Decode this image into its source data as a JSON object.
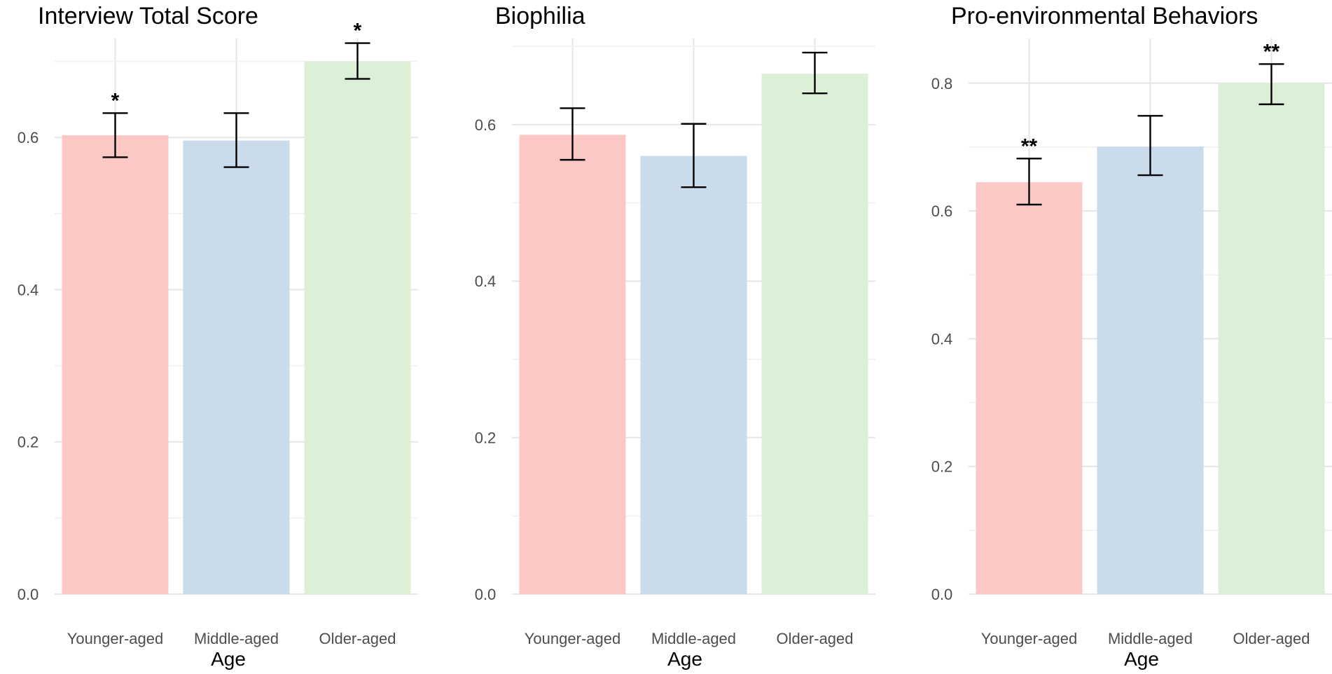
{
  "chart_data": [
    {
      "type": "bar",
      "title": "Interview Total Score",
      "xlabel": "Age",
      "ylabel": "",
      "categories": [
        "Younger-aged",
        "Middle-aged",
        "Older-aged"
      ],
      "values": [
        0.603,
        0.596,
        0.7
      ],
      "error_low": [
        0.574,
        0.561,
        0.677
      ],
      "error_high": [
        0.632,
        0.632,
        0.724
      ],
      "significance": [
        "*",
        "",
        "*"
      ],
      "ylim": [
        0,
        0.73
      ],
      "yticks": [
        0.0,
        0.2,
        0.4,
        0.6
      ],
      "ytick_labels": [
        "0.0",
        "0.2",
        "0.4",
        "0.6"
      ],
      "grid": true
    },
    {
      "type": "bar",
      "title": "Biophilia",
      "xlabel": "Age",
      "ylabel": "",
      "categories": [
        "Younger-aged",
        "Middle-aged",
        "Older-aged"
      ],
      "values": [
        0.587,
        0.56,
        0.665
      ],
      "error_low": [
        0.555,
        0.52,
        0.64
      ],
      "error_high": [
        0.621,
        0.601,
        0.692
      ],
      "significance": [
        "",
        "",
        ""
      ],
      "ylim": [
        0,
        0.71
      ],
      "yticks": [
        0.0,
        0.2,
        0.4,
        0.6
      ],
      "ytick_labels": [
        "0.0",
        "0.2",
        "0.4",
        "0.6"
      ],
      "grid": true
    },
    {
      "type": "bar",
      "title": "Pro-environmental Behaviors",
      "xlabel": "Age",
      "ylabel": "",
      "categories": [
        "Younger-aged",
        "Middle-aged",
        "Older-aged"
      ],
      "values": [
        0.645,
        0.701,
        0.8
      ],
      "error_low": [
        0.61,
        0.656,
        0.767
      ],
      "error_high": [
        0.682,
        0.749,
        0.83
      ],
      "significance": [
        "**",
        "",
        "**"
      ],
      "ylim": [
        0,
        0.87
      ],
      "yticks": [
        0.0,
        0.2,
        0.4,
        0.6,
        0.8
      ],
      "ytick_labels": [
        "0.0",
        "0.2",
        "0.4",
        "0.6",
        "0.8"
      ],
      "grid": true
    }
  ],
  "colors": {
    "bars": [
      "#fbc8c6",
      "#cadbeb",
      "#dbf0d7"
    ],
    "error_bars": "#000000",
    "grid": "#e6e6e6"
  }
}
